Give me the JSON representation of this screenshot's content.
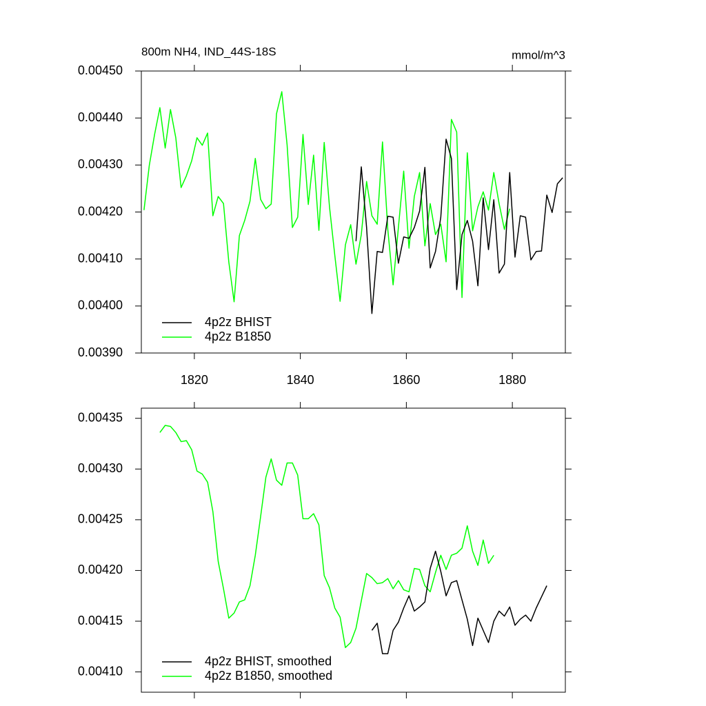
{
  "chart_data": [
    {
      "type": "line",
      "title": "800m NH4, IND_44S-18S",
      "units": "mmol/m^3",
      "xlim": [
        1810,
        1890
      ],
      "xticks": [
        1820,
        1840,
        1860,
        1880
      ],
      "ylim": [
        0.0039,
        0.0045
      ],
      "yticks": [
        {
          "value": 0.0039,
          "label": "0.00390"
        },
        {
          "value": 0.004,
          "label": "0.00400"
        },
        {
          "value": 0.0041,
          "label": "0.00410"
        },
        {
          "value": 0.0042,
          "label": "0.00420"
        },
        {
          "value": 0.0043,
          "label": "0.00430"
        },
        {
          "value": 0.0044,
          "label": "0.00440"
        },
        {
          "value": 0.0045,
          "label": "0.00450"
        }
      ],
      "legend": "lower left",
      "series": [
        {
          "name": "4p2z BHIST",
          "color": "#000000",
          "x": [
            1850.5,
            1851.5,
            1852.5,
            1853.5,
            1854.5,
            1855.5,
            1856.5,
            1857.5,
            1858.5,
            1859.5,
            1860.5,
            1861.5,
            1862.5,
            1863.5,
            1864.5,
            1865.5,
            1866.5,
            1867.5,
            1868.5,
            1869.5,
            1870.5,
            1871.5,
            1872.5,
            1873.5,
            1874.5,
            1875.5,
            1876.5,
            1877.5,
            1878.5,
            1879.5,
            1880.5,
            1881.5,
            1882.5,
            1883.5,
            1884.5,
            1885.5,
            1886.5,
            1887.5,
            1888.5,
            1889.5
          ],
          "values": [
            0.004138,
            0.004296,
            0.004167,
            0.003984,
            0.004116,
            0.004114,
            0.004191,
            0.004189,
            0.004091,
            0.004147,
            0.004144,
            0.004167,
            0.004202,
            0.004295,
            0.004081,
            0.004116,
            0.004189,
            0.004355,
            0.004314,
            0.004035,
            0.004152,
            0.004182,
            0.004138,
            0.004043,
            0.00423,
            0.00412,
            0.004226,
            0.00407,
            0.004089,
            0.004284,
            0.004104,
            0.004192,
            0.004189,
            0.004098,
            0.004116,
            0.004117,
            0.004236,
            0.004199,
            0.00426,
            0.004273
          ]
        },
        {
          "name": "4p2z B1850",
          "color": "#00ff00",
          "x": [
            1810.5,
            1811.5,
            1812.5,
            1813.5,
            1814.5,
            1815.5,
            1816.5,
            1817.5,
            1818.5,
            1819.5,
            1820.5,
            1821.5,
            1822.5,
            1823.5,
            1824.5,
            1825.5,
            1826.5,
            1827.5,
            1828.5,
            1829.5,
            1830.5,
            1831.5,
            1832.5,
            1833.5,
            1834.5,
            1835.5,
            1836.5,
            1837.5,
            1838.5,
            1839.5,
            1840.5,
            1841.5,
            1842.5,
            1843.5,
            1844.5,
            1845.5,
            1846.5,
            1847.5,
            1848.5,
            1849.5,
            1850.5,
            1851.5,
            1852.5,
            1853.5,
            1854.5,
            1855.5,
            1856.5,
            1857.5,
            1858.5,
            1859.5,
            1860.5,
            1861.5,
            1862.5,
            1863.5,
            1864.5,
            1865.5,
            1866.5,
            1867.5,
            1868.5,
            1869.5,
            1870.5,
            1871.5,
            1872.5,
            1873.5,
            1874.5,
            1875.5,
            1876.5,
            1877.5,
            1878.5,
            1879.5
          ],
          "values": [
            0.004204,
            0.004299,
            0.004365,
            0.004422,
            0.004336,
            0.004418,
            0.004358,
            0.004252,
            0.004277,
            0.004309,
            0.004358,
            0.004342,
            0.004368,
            0.004192,
            0.004233,
            0.004218,
            0.004094,
            0.004009,
            0.00415,
            0.004182,
            0.004223,
            0.004314,
            0.004227,
            0.004207,
            0.004217,
            0.004409,
            0.004456,
            0.004343,
            0.004167,
            0.004189,
            0.004365,
            0.004216,
            0.004321,
            0.004161,
            0.004348,
            0.004211,
            0.004108,
            0.00401,
            0.00413,
            0.004173,
            0.004089,
            0.004152,
            0.004265,
            0.004192,
            0.004174,
            0.004349,
            0.004163,
            0.004045,
            0.004167,
            0.004287,
            0.004123,
            0.004233,
            0.004284,
            0.004128,
            0.004218,
            0.004152,
            0.004174,
            0.004094,
            0.004397,
            0.00437,
            0.004018,
            0.004326,
            0.00416,
            0.004211,
            0.004243,
            0.004204,
            0.004284,
            0.004218,
            0.004163,
            0.004207
          ]
        }
      ]
    },
    {
      "type": "line",
      "xlim": [
        1810,
        1890
      ],
      "xticks": [
        1820,
        1840,
        1860,
        1880
      ],
      "ylim": [
        0.00408,
        0.00436
      ],
      "yticks": [
        {
          "value": 0.0041,
          "label": "0.00410"
        },
        0.00415,
        {
          "value": 0.0042,
          "label": "0.00420"
        },
        0.00425,
        {
          "value": 0.0043,
          "label": "0.00430"
        },
        0.00435
      ],
      "legend": "lower left",
      "series": [
        {
          "name": "4p2z BHIST, smoothed",
          "color": "#000000",
          "x": [
            1853.5,
            1854.5,
            1855.5,
            1856.5,
            1857.5,
            1858.5,
            1859.5,
            1860.5,
            1861.5,
            1862.5,
            1863.5,
            1864.5,
            1865.5,
            1866.5,
            1867.5,
            1868.5,
            1869.5,
            1870.5,
            1871.5,
            1872.5,
            1873.5,
            1874.5,
            1875.5,
            1876.5,
            1877.5,
            1878.5,
            1879.5,
            1880.5,
            1881.5,
            1882.5,
            1883.5,
            1884.5,
            1885.5,
            1886.5
          ],
          "values": [
            0.004141,
            0.004148,
            0.004118,
            0.004118,
            0.004141,
            0.004149,
            0.004163,
            0.004175,
            0.00416,
            0.004164,
            0.004169,
            0.004202,
            0.004219,
            0.004199,
            0.004175,
            0.004188,
            0.00419,
            0.004171,
            0.004152,
            0.004126,
            0.004153,
            0.004141,
            0.004129,
            0.00415,
            0.00416,
            0.004155,
            0.004164,
            0.004146,
            0.004152,
            0.004156,
            0.00415,
            0.004163,
            0.004174,
            0.004185
          ]
        },
        {
          "name": "4p2z B1850, smoothed",
          "color": "#00ff00",
          "x": [
            1813.5,
            1814.5,
            1815.5,
            1816.5,
            1817.5,
            1818.5,
            1819.5,
            1820.5,
            1821.5,
            1822.5,
            1823.5,
            1824.5,
            1825.5,
            1826.5,
            1827.5,
            1828.5,
            1829.5,
            1830.5,
            1831.5,
            1832.5,
            1833.5,
            1834.5,
            1835.5,
            1836.5,
            1837.5,
            1838.5,
            1839.5,
            1840.5,
            1841.5,
            1842.5,
            1843.5,
            1844.5,
            1845.5,
            1846.5,
            1847.5,
            1848.5,
            1849.5,
            1850.5,
            1851.5,
            1852.5,
            1853.5,
            1854.5,
            1855.5,
            1856.5,
            1857.5,
            1858.5,
            1859.5,
            1860.5,
            1861.5,
            1862.5,
            1863.5,
            1864.5,
            1865.5,
            1866.5,
            1867.5,
            1868.5,
            1869.5,
            1870.5,
            1871.5,
            1872.5,
            1873.5,
            1874.5,
            1875.5,
            1876.5
          ],
          "values": [
            0.004336,
            0.004343,
            0.004342,
            0.004336,
            0.004327,
            0.004328,
            0.004319,
            0.004298,
            0.004295,
            0.004287,
            0.004258,
            0.004209,
            0.004182,
            0.004153,
            0.004158,
            0.004169,
            0.004171,
            0.004185,
            0.004215,
            0.004253,
            0.004292,
            0.00431,
            0.004289,
            0.004284,
            0.004306,
            0.004306,
            0.004294,
            0.004251,
            0.004251,
            0.004256,
            0.004245,
            0.004195,
            0.004183,
            0.004163,
            0.004154,
            0.004124,
            0.004129,
            0.004143,
            0.00417,
            0.004197,
            0.004193,
            0.004187,
            0.004188,
            0.004192,
            0.004182,
            0.00419,
            0.004181,
            0.004179,
            0.004202,
            0.004201,
            0.004185,
            0.004179,
            0.004198,
            0.004215,
            0.004201,
            0.004215,
            0.004217,
            0.004222,
            0.004244,
            0.004219,
            0.004205,
            0.00423,
            0.004207,
            0.004215
          ]
        }
      ]
    }
  ]
}
